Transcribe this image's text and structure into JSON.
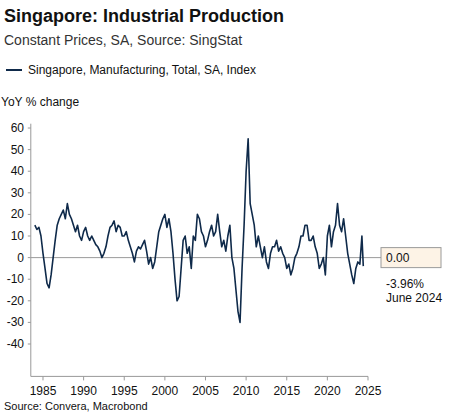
{
  "chart_data": {
    "type": "line",
    "title": "Singapore: Industrial Production",
    "subtitle": "Constant Prices, SA, Source: SingStat",
    "y_label": "YoY % change",
    "source": "Source: Convera, Macrobond",
    "x": [
      1984,
      1984.25,
      1984.5,
      1984.75,
      1985,
      1985.25,
      1985.5,
      1985.75,
      1986,
      1986.25,
      1986.5,
      1986.75,
      1987,
      1987.25,
      1987.5,
      1987.75,
      1988,
      1988.25,
      1988.5,
      1988.75,
      1989,
      1989.25,
      1989.5,
      1989.75,
      1990,
      1990.25,
      1990.5,
      1990.75,
      1991,
      1991.25,
      1991.5,
      1991.75,
      1992,
      1992.25,
      1992.5,
      1992.75,
      1993,
      1993.25,
      1993.5,
      1993.75,
      1994,
      1994.25,
      1994.5,
      1994.75,
      1995,
      1995.25,
      1995.5,
      1995.75,
      1996,
      1996.25,
      1996.5,
      1996.75,
      1997,
      1997.25,
      1997.5,
      1997.75,
      1998,
      1998.25,
      1998.5,
      1998.75,
      1999,
      1999.25,
      1999.5,
      1999.75,
      2000,
      2000.25,
      2000.5,
      2000.75,
      2001,
      2001.25,
      2001.5,
      2001.75,
      2002,
      2002.25,
      2002.5,
      2002.75,
      2003,
      2003.25,
      2003.5,
      2003.75,
      2004,
      2004.25,
      2004.5,
      2004.75,
      2005,
      2005.25,
      2005.5,
      2005.75,
      2006,
      2006.25,
      2006.5,
      2006.75,
      2007,
      2007.25,
      2007.5,
      2007.75,
      2008,
      2008.25,
      2008.5,
      2008.75,
      2009,
      2009.25,
      2009.5,
      2009.75,
      2010,
      2010.25,
      2010.5,
      2010.75,
      2011,
      2011.25,
      2011.5,
      2011.75,
      2012,
      2012.25,
      2012.5,
      2012.75,
      2013,
      2013.25,
      2013.5,
      2013.75,
      2014,
      2014.25,
      2014.5,
      2014.75,
      2015,
      2015.25,
      2015.5,
      2015.75,
      2016,
      2016.25,
      2016.5,
      2016.75,
      2017,
      2017.25,
      2017.5,
      2017.75,
      2018,
      2018.25,
      2018.5,
      2018.75,
      2019,
      2019.25,
      2019.5,
      2019.75,
      2020,
      2020.25,
      2020.5,
      2020.75,
      2021,
      2021.25,
      2021.5,
      2021.75,
      2022,
      2022.25,
      2022.5,
      2022.75,
      2023,
      2023.25,
      2023.5,
      2023.75,
      2024,
      2024.25,
      2024.42
    ],
    "series": [
      {
        "name": "Singapore, Manufacturing, Total, SA, Index",
        "color": "#0f2a4a",
        "values": [
          15,
          13,
          14,
          10,
          2,
          -5,
          -12,
          -14,
          -8,
          0,
          8,
          15,
          18,
          20,
          22,
          18,
          25,
          20,
          18,
          15,
          12,
          15,
          10,
          8,
          12,
          14,
          10,
          8,
          10,
          8,
          6,
          5,
          3,
          0,
          2,
          5,
          10,
          14,
          15,
          17,
          12,
          15,
          14,
          10,
          10,
          12,
          8,
          5,
          2,
          -2,
          3,
          5,
          4,
          6,
          8,
          3,
          -3,
          0,
          -5,
          -2,
          5,
          12,
          15,
          18,
          20,
          14,
          18,
          12,
          2,
          -10,
          -20,
          -18,
          -5,
          8,
          10,
          2,
          5,
          -5,
          10,
          8,
          20,
          18,
          12,
          10,
          5,
          8,
          12,
          15,
          10,
          12,
          20,
          12,
          5,
          8,
          3,
          10,
          15,
          0,
          -5,
          -15,
          -25,
          -30,
          -5,
          15,
          40,
          55,
          25,
          20,
          15,
          5,
          10,
          5,
          0,
          5,
          -2,
          -5,
          2,
          5,
          5,
          8,
          3,
          5,
          2,
          0,
          -5,
          -3,
          -8,
          -5,
          0,
          2,
          5,
          10,
          10,
          15,
          15,
          8,
          8,
          10,
          5,
          2,
          -5,
          -3,
          0,
          -8,
          10,
          15,
          5,
          12,
          15,
          25,
          15,
          12,
          18,
          10,
          2,
          -3,
          -8,
          -12,
          -5,
          -2,
          -3,
          10,
          -3.96
        ]
      }
    ],
    "xlim": [
      1983.5,
      2025
    ],
    "xticks": [
      1985,
      1990,
      1995,
      2000,
      2005,
      2010,
      2015,
      2020,
      2025
    ],
    "ylim": [
      -55,
      62
    ],
    "yticks": [
      -40,
      -30,
      -20,
      -10,
      0,
      10,
      20,
      30,
      40,
      50,
      60
    ],
    "reference_lines": [
      {
        "y": 0,
        "label": "0.00"
      }
    ],
    "annotations": [
      {
        "x": 2024.42,
        "y": -3.96,
        "label": "-3.96%",
        "date": "June 2024"
      }
    ],
    "grid": false,
    "legend": "top"
  }
}
